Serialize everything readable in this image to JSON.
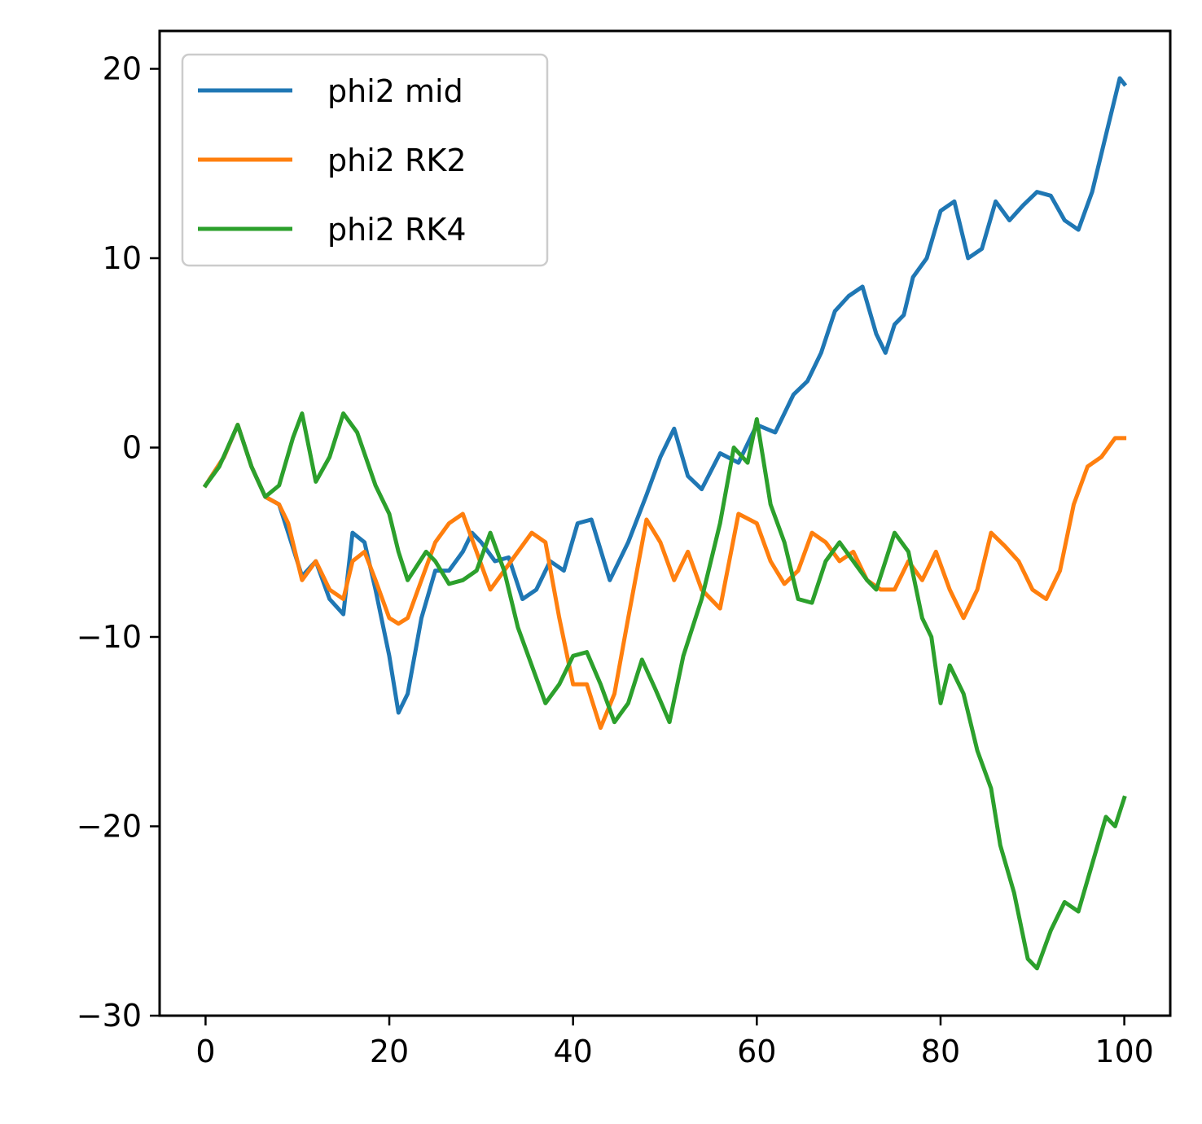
{
  "chart_data": {
    "type": "line",
    "title": "",
    "xlabel": "",
    "ylabel": "",
    "xlim": [
      -5,
      105
    ],
    "ylim": [
      -30,
      22
    ],
    "xticks": [
      0,
      20,
      40,
      60,
      80,
      100
    ],
    "yticks": [
      -30,
      -20,
      -10,
      0,
      10,
      20
    ],
    "xtick_labels": [
      "0",
      "20",
      "40",
      "60",
      "80",
      "100"
    ],
    "ytick_labels": [
      "−30",
      "−20",
      "−10",
      "0",
      "10",
      "20"
    ],
    "grid": false,
    "legend_position": "upper-left",
    "series": [
      {
        "name": "phi2 mid",
        "color": "#1f77b4",
        "x": [
          0,
          2,
          3.5,
          5,
          6.5,
          8,
          9,
          10.5,
          12,
          13.5,
          15,
          16,
          17.3,
          18.5,
          20,
          21,
          22,
          23.5,
          25,
          26.5,
          28,
          29,
          30,
          31.5,
          33,
          34.5,
          36,
          37.5,
          39,
          40.5,
          42,
          44,
          46,
          48,
          49.5,
          51,
          52.5,
          54,
          56,
          58,
          60,
          62,
          64,
          65.5,
          67,
          68.5,
          70,
          71.5,
          73,
          74,
          75,
          76,
          77,
          78.5,
          80,
          81.5,
          83,
          84.5,
          86,
          87.5,
          89,
          90.5,
          92,
          93.5,
          95,
          96.5,
          98,
          99.5,
          100
        ],
        "y": [
          -2,
          -0.5,
          1.2,
          -1,
          -2.6,
          -3,
          -4.5,
          -6.8,
          -6,
          -8,
          -8.8,
          -4.5,
          -5,
          -7.5,
          -11,
          -14,
          -13,
          -9,
          -6.5,
          -6.5,
          -5.5,
          -4.5,
          -5,
          -6,
          -5.8,
          -8,
          -7.5,
          -6,
          -6.5,
          -4,
          -3.8,
          -7,
          -5,
          -2.5,
          -0.5,
          1,
          -1.5,
          -2.2,
          -0.3,
          -0.8,
          1.2,
          0.8,
          2.8,
          3.5,
          5,
          7.2,
          8,
          8.5,
          6,
          5,
          6.5,
          7,
          9,
          10,
          12.5,
          13,
          10,
          10.5,
          13,
          12,
          12.8,
          13.5,
          13.3,
          12,
          11.5,
          13.5,
          16.5,
          19.5,
          19.2
        ]
      },
      {
        "name": "phi2 RK2",
        "color": "#ff7f0e",
        "x": [
          0,
          2,
          3.5,
          5,
          6.5,
          8,
          9,
          10.5,
          12,
          13.5,
          15,
          16,
          17.3,
          18.5,
          20,
          21,
          22,
          23.5,
          25,
          26.5,
          28,
          29.5,
          31,
          32.5,
          34,
          35.5,
          37,
          38.5,
          40,
          41.5,
          43,
          44.5,
          46,
          48,
          49.5,
          51,
          52.5,
          54,
          56,
          58,
          60,
          61.5,
          63,
          64.5,
          66,
          67.5,
          69,
          70.5,
          72,
          73.5,
          75,
          76.5,
          78,
          79.5,
          81,
          82.5,
          84,
          85.5,
          87,
          88.5,
          90,
          91.5,
          93,
          94.5,
          96,
          97.5,
          99,
          100
        ],
        "y": [
          -2,
          -0.5,
          1.2,
          -1,
          -2.6,
          -3,
          -4,
          -7,
          -6,
          -7.5,
          -8,
          -6,
          -5.5,
          -7,
          -9,
          -9.3,
          -9,
          -7,
          -5,
          -4,
          -3.5,
          -5.5,
          -7.5,
          -6.5,
          -5.5,
          -4.5,
          -5,
          -9,
          -12.5,
          -12.5,
          -14.8,
          -13,
          -9,
          -3.8,
          -5,
          -7,
          -5.5,
          -7.5,
          -8.5,
          -3.5,
          -4,
          -6,
          -7.2,
          -6.5,
          -4.5,
          -5,
          -6,
          -5.5,
          -7,
          -7.5,
          -7.5,
          -6,
          -7,
          -5.5,
          -7.5,
          -9,
          -7.5,
          -4.5,
          -5.2,
          -6,
          -7.5,
          -8,
          -6.5,
          -3,
          -1,
          -0.5,
          0.5,
          0.5
        ]
      },
      {
        "name": "phi2 RK4",
        "color": "#2ca02c",
        "x": [
          0,
          1.5,
          3.5,
          5,
          6.5,
          8,
          9.5,
          10.5,
          12,
          13.5,
          15,
          16.5,
          18.5,
          20,
          21,
          22,
          24,
          25,
          26.5,
          28,
          29.5,
          31,
          32.5,
          34,
          35.5,
          37,
          38.5,
          40,
          41.5,
          43,
          44.5,
          46,
          47.5,
          49,
          50.5,
          52,
          54,
          56,
          57.5,
          59,
          60,
          61.5,
          63,
          64.5,
          66,
          67.5,
          69,
          70.5,
          72,
          73,
          74,
          75,
          76.5,
          78,
          79,
          80,
          81,
          82.5,
          84,
          85.5,
          86.5,
          88,
          89.5,
          90.5,
          92,
          93.5,
          95,
          96.5,
          98,
          99,
          100
        ],
        "y": [
          -2,
          -1,
          1.2,
          -1,
          -2.6,
          -2,
          0.5,
          1.8,
          -1.8,
          -0.5,
          1.8,
          0.8,
          -2,
          -3.5,
          -5.5,
          -7,
          -5.5,
          -6,
          -7.2,
          -7,
          -6.5,
          -4.5,
          -6.5,
          -9.5,
          -11.5,
          -13.5,
          -12.5,
          -11,
          -10.8,
          -12.5,
          -14.5,
          -13.5,
          -11.2,
          -12.8,
          -14.5,
          -11,
          -8,
          -4,
          0,
          -0.8,
          1.5,
          -3,
          -5,
          -8,
          -8.2,
          -6,
          -5,
          -6,
          -7,
          -7.5,
          -6,
          -4.5,
          -5.5,
          -9,
          -10,
          -13.5,
          -11.5,
          -13,
          -16,
          -18,
          -21,
          -23.5,
          -27,
          -27.5,
          -25.5,
          -24,
          -24.5,
          -22,
          -19.5,
          -20,
          -18.5
        ]
      }
    ]
  }
}
